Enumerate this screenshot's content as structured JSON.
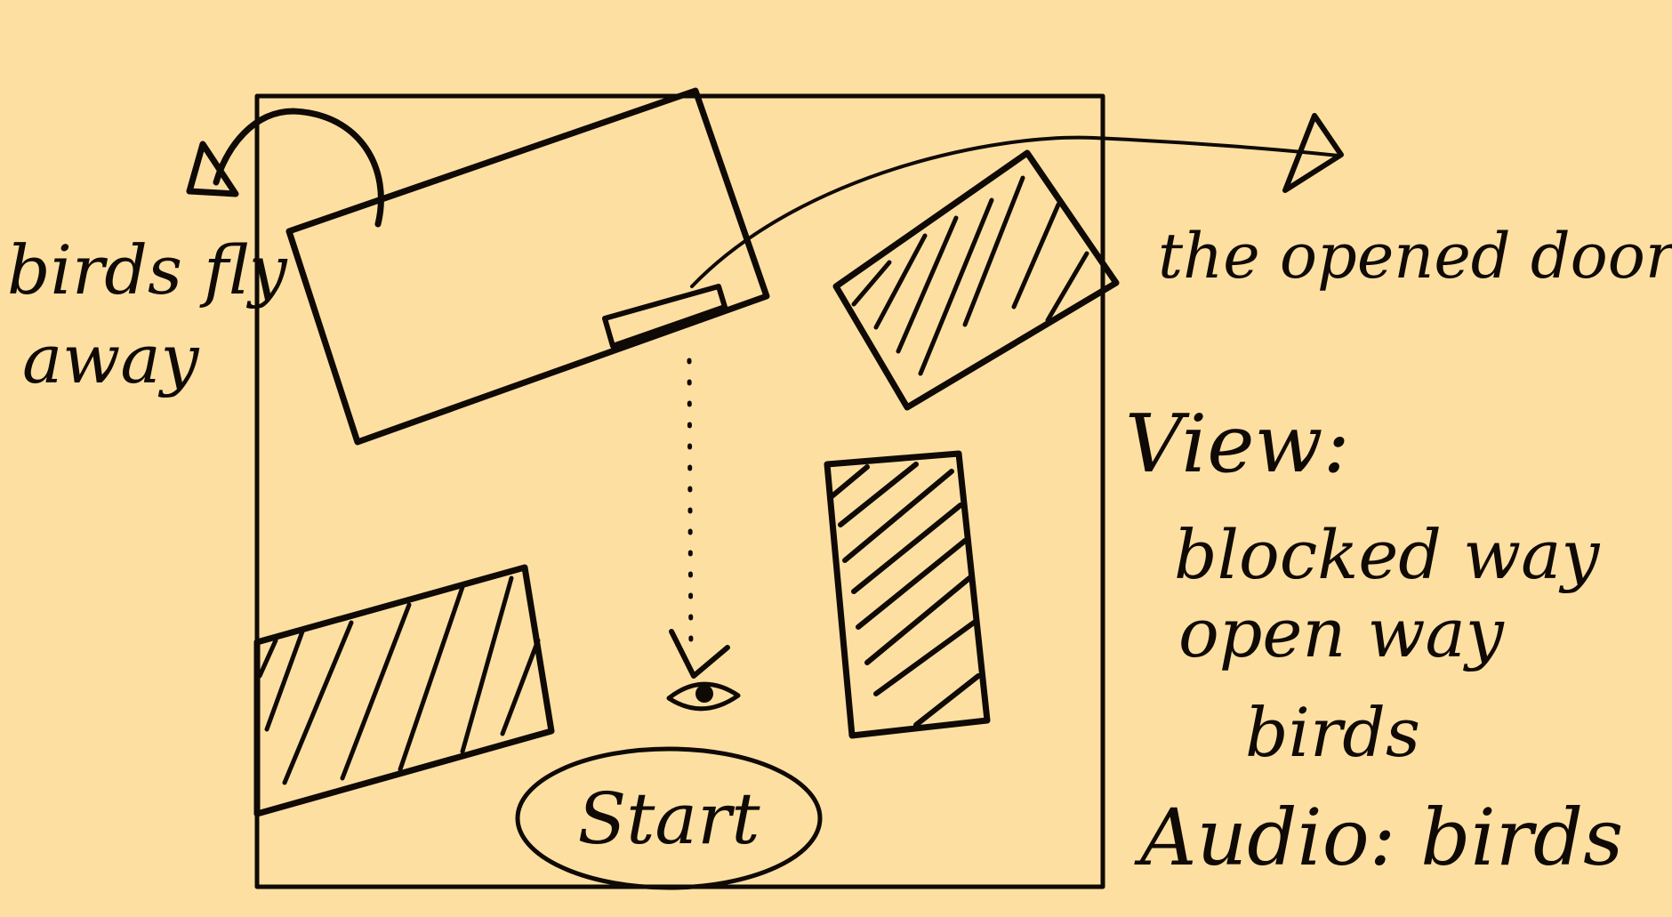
{
  "labels": {
    "birds_fly": "birds fly",
    "away": "away",
    "opened_door": "the opened door.",
    "start": "Start",
    "view_heading": "View:",
    "view_blocked": "blocked way",
    "view_open": "open way",
    "view_birds": "birds",
    "audio": "Audio: birds"
  },
  "colors": {
    "background": "#FEDFA2",
    "ink": "#0f0a05"
  }
}
